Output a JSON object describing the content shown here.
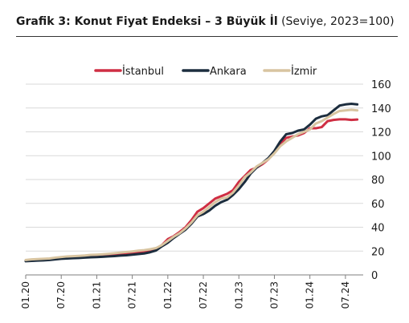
{
  "chart_data": {
    "type": "line",
    "title": "Grafik 3: Konut Fiyat Endeksi – 3 Büyük İl",
    "subtitle": "(Seviye, 2023=100)",
    "xlabel": "",
    "ylabel": "",
    "ylim": [
      0,
      160
    ],
    "yticks": [
      0,
      20,
      40,
      60,
      80,
      100,
      120,
      140,
      160
    ],
    "y_axis_side": "right",
    "xlim": [
      0,
      57
    ],
    "x_tick_labels": [
      "01.20",
      "07.20",
      "01.21",
      "07.21",
      "01.22",
      "07.22",
      "01.23",
      "07.23",
      "01.24",
      "07.24"
    ],
    "x_tick_positions": [
      0,
      6,
      12,
      18,
      24,
      30,
      36,
      42,
      48,
      54
    ],
    "x_start": "01.20",
    "x_end": "07.24",
    "grid": true,
    "legend_position": "top",
    "series": [
      {
        "name": "İstanbul",
        "color": "#cf2e43",
        "values": [
          12,
          12.5,
          12.8,
          13,
          13.2,
          14,
          14.5,
          15,
          15.2,
          15.5,
          15.8,
          16,
          16.2,
          16.5,
          16.8,
          17.2,
          17.8,
          18.2,
          18.8,
          19.2,
          19.8,
          20.5,
          21.8,
          25,
          30,
          32.5,
          36,
          40,
          46,
          53,
          56,
          60,
          64,
          66,
          68,
          71,
          78,
          83,
          88,
          90,
          93,
          97,
          103,
          110,
          115,
          116,
          117,
          119,
          123,
          123,
          124,
          129,
          130,
          130.5,
          130.5,
          130,
          130.3
        ]
      },
      {
        "name": "Ankara",
        "color": "#1c2d3e",
        "values": [
          11.5,
          11.8,
          12,
          12.2,
          12.5,
          13,
          13.5,
          13.8,
          14,
          14.2,
          14.5,
          14.8,
          15,
          15.2,
          15.5,
          15.8,
          16.2,
          16.5,
          17,
          17.5,
          18,
          19,
          20.5,
          24,
          27,
          31,
          34.5,
          38,
          43,
          49,
          51,
          54,
          58,
          61,
          63,
          67,
          72,
          78,
          85,
          90,
          94,
          98,
          104,
          112,
          118,
          119,
          121,
          122,
          126,
          131,
          133,
          134,
          138,
          142,
          143,
          143.5,
          143
        ]
      },
      {
        "name": "İzmir",
        "color": "#d8c4a0",
        "values": [
          12.5,
          13,
          13.3,
          13.5,
          13.8,
          14.5,
          15,
          15.5,
          15.7,
          16,
          16.3,
          16.8,
          17,
          17.3,
          17.7,
          18.2,
          18.7,
          19.2,
          19.7,
          20.3,
          20.8,
          21.5,
          22.5,
          25,
          28.5,
          32,
          35,
          39,
          44,
          50,
          53,
          57,
          61,
          64,
          65,
          69,
          75,
          82,
          86,
          91,
          94,
          97,
          102,
          108,
          112,
          115,
          118,
          120,
          122,
          127,
          129,
          132,
          135,
          137.5,
          138,
          138.5,
          138
        ]
      }
    ]
  }
}
